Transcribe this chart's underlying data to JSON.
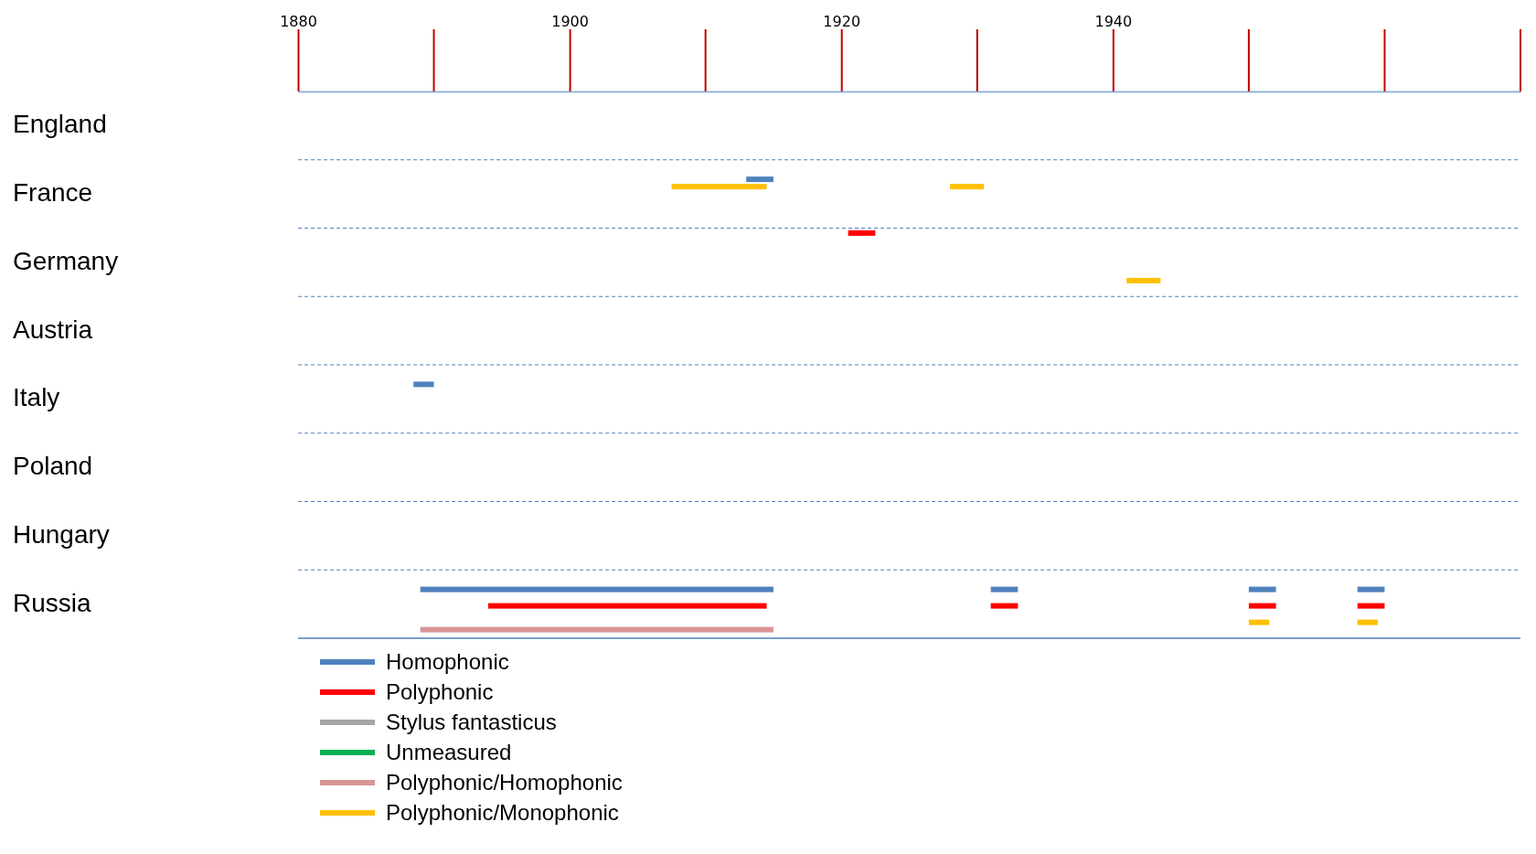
{
  "chart_data": {
    "type": "bar",
    "orientation": "horizontal",
    "categories": [
      "England",
      "France",
      "Germany",
      "Austria",
      "Italy",
      "Poland",
      "Hungary",
      "Russia"
    ],
    "xlim": [
      1880,
      1970
    ],
    "xticks": [
      1880,
      1900,
      1920,
      1940
    ],
    "grid": "y",
    "legend": "bottom",
    "series": [
      {
        "name": "Homophonic",
        "color": "#4f81bd",
        "base": [
          null,
          1913,
          null,
          null,
          1888.5,
          null,
          null,
          1889
        ],
        "values": [
          null,
          2,
          null,
          null,
          1.5,
          null,
          null,
          26
        ]
      },
      {
        "name": "Polyphonic",
        "color": "#ff0000",
        "base": [
          null,
          null,
          1920.5,
          null,
          null,
          null,
          null,
          1894
        ],
        "values": [
          null,
          null,
          2,
          null,
          null,
          null,
          null,
          20.5
        ]
      },
      {
        "name": "Stylus fantasticus",
        "color": "#a5a5a5",
        "values": [
          null,
          null,
          null,
          null,
          null,
          null,
          null,
          null
        ]
      },
      {
        "name": "Unmeasured",
        "color": "#00b050",
        "values": [
          null,
          null,
          null,
          null,
          null,
          null,
          null,
          null
        ]
      },
      {
        "name": "Polyphonic/Homophonic",
        "color": "#d99594",
        "base": [
          null,
          null,
          null,
          null,
          null,
          null,
          null,
          1889
        ],
        "values": [
          null,
          null,
          null,
          null,
          null,
          null,
          null,
          26
        ]
      },
      {
        "name": "Polyphonic/Monophonic",
        "color": "#ffc000",
        "base": [
          null,
          1907.5,
          1941,
          null,
          null,
          null,
          null,
          1950
        ],
        "values": [
          null,
          7,
          2.5,
          null,
          null,
          null,
          null,
          1.5
        ]
      },
      {
        "color": "#4f81bd",
        "base": [
          null,
          null,
          null,
          null,
          null,
          null,
          null,
          1931
        ],
        "values": [
          null,
          null,
          null,
          null,
          null,
          null,
          null,
          2
        ]
      },
      {
        "color": "#4f81bd",
        "base": [
          null,
          null,
          null,
          null,
          null,
          null,
          null,
          1950
        ],
        "values": [
          null,
          null,
          null,
          null,
          null,
          null,
          null,
          2
        ]
      },
      {
        "color": "#4f81bd",
        "base": [
          null,
          null,
          null,
          null,
          null,
          null,
          null,
          1958
        ],
        "values": [
          null,
          null,
          null,
          null,
          null,
          null,
          null,
          2
        ]
      },
      {
        "color": "#ff0000",
        "base": [
          null,
          null,
          null,
          null,
          null,
          null,
          null,
          1931
        ],
        "values": [
          null,
          null,
          null,
          null,
          null,
          null,
          null,
          2
        ]
      },
      {
        "color": "#ff0000",
        "base": [
          null,
          null,
          null,
          null,
          null,
          null,
          null,
          1950
        ],
        "values": [
          null,
          null,
          null,
          null,
          null,
          null,
          null,
          2
        ]
      },
      {
        "color": "#ff0000",
        "base": [
          null,
          null,
          null,
          null,
          null,
          null,
          null,
          1958
        ],
        "values": [
          null,
          null,
          null,
          null,
          null,
          null,
          null,
          2
        ]
      },
      {
        "color": "#ffc000",
        "base": [
          null,
          1928,
          null,
          null,
          null,
          null,
          null,
          1958
        ],
        "values": [
          null,
          2.5,
          null,
          null,
          null,
          null,
          null,
          1.5
        ]
      }
    ]
  }
}
